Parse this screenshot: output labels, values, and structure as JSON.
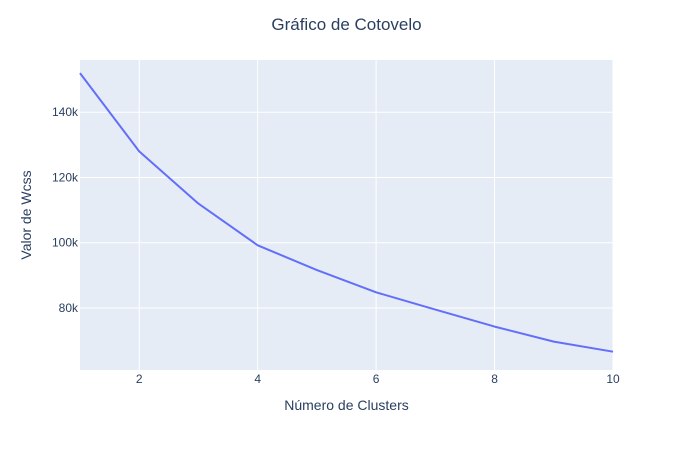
{
  "chart_data": {
    "type": "line",
    "title": "Gráfico de Cotovelo",
    "xlabel": "Número de Clusters",
    "ylabel": "Valor de Wcss",
    "xlim": [
      1,
      10
    ],
    "ylim": [
      61000,
      156000
    ],
    "xticks": [
      2,
      4,
      6,
      8,
      10
    ],
    "xtick_labels": [
      "2",
      "4",
      "6",
      "8",
      "10"
    ],
    "yticks": [
      80000,
      100000,
      120000,
      140000
    ],
    "ytick_labels": [
      "80k",
      "100k",
      "120k",
      "140k"
    ],
    "grid": true,
    "legend": "none",
    "colors": {
      "plot_bg": "#e5ecf6",
      "grid": "#ffffff",
      "line": "#636efa",
      "text": "#2a3f5f"
    },
    "series": [
      {
        "x": [
          1,
          2,
          3,
          4,
          5,
          6,
          7,
          8,
          9,
          10
        ],
        "values": [
          152000,
          128000,
          112000,
          99200,
          91600,
          84800,
          79500,
          74300,
          69700,
          66600
        ]
      }
    ]
  }
}
